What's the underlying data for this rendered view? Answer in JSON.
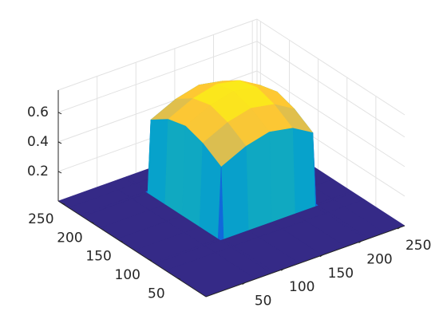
{
  "chart_data": {
    "type": "surface",
    "x": [
      0,
      64,
      84,
      88,
      120,
      150,
      180,
      206,
      210,
      230,
      256
    ],
    "y": [
      0,
      70,
      88,
      92,
      124,
      154,
      184,
      214,
      218,
      238,
      256
    ],
    "z": [
      [
        0,
        0,
        0,
        0,
        0,
        0,
        0,
        0,
        0,
        0,
        0
      ],
      [
        0,
        0,
        0,
        0,
        0,
        0,
        0,
        0,
        0,
        0,
        0
      ],
      [
        0,
        0,
        0,
        0,
        0,
        0,
        0,
        0,
        0,
        0,
        0
      ],
      [
        0,
        0,
        0,
        0.48,
        0.56,
        0.6,
        0.57,
        0.49,
        0,
        0,
        0
      ],
      [
        0,
        0,
        0,
        0.56,
        0.64,
        0.68,
        0.65,
        0.57,
        0,
        0,
        0
      ],
      [
        0,
        0,
        0,
        0.6,
        0.68,
        0.72,
        0.69,
        0.61,
        0,
        0,
        0
      ],
      [
        0,
        0,
        0,
        0.57,
        0.65,
        0.69,
        0.66,
        0.58,
        0,
        0,
        0
      ],
      [
        0,
        0,
        0,
        0.49,
        0.57,
        0.61,
        0.58,
        0.5,
        0,
        0,
        0
      ],
      [
        0,
        0,
        0,
        0,
        0,
        0,
        0,
        0,
        0,
        0,
        0
      ],
      [
        0,
        0,
        0,
        0,
        0,
        0,
        0,
        0,
        0,
        0,
        0
      ],
      [
        0,
        0,
        0,
        0,
        0,
        0,
        0,
        0,
        0,
        0,
        0
      ]
    ],
    "xlim": [
      0,
      256
    ],
    "ylim": [
      0,
      256
    ],
    "zlim": [
      0,
      0.75
    ],
    "xticks": [
      50,
      100,
      150,
      200,
      250
    ],
    "yticks": [
      50,
      100,
      150,
      200,
      250
    ],
    "zticks": [
      0.2,
      0.4,
      0.6
    ],
    "grid": true,
    "colormap": [
      "#352a87",
      "#0f5cdd",
      "#1481d6",
      "#06a4ca",
      "#2eb7a4",
      "#87bf77",
      "#d1bb59",
      "#fec832",
      "#f9fb0e"
    ]
  }
}
